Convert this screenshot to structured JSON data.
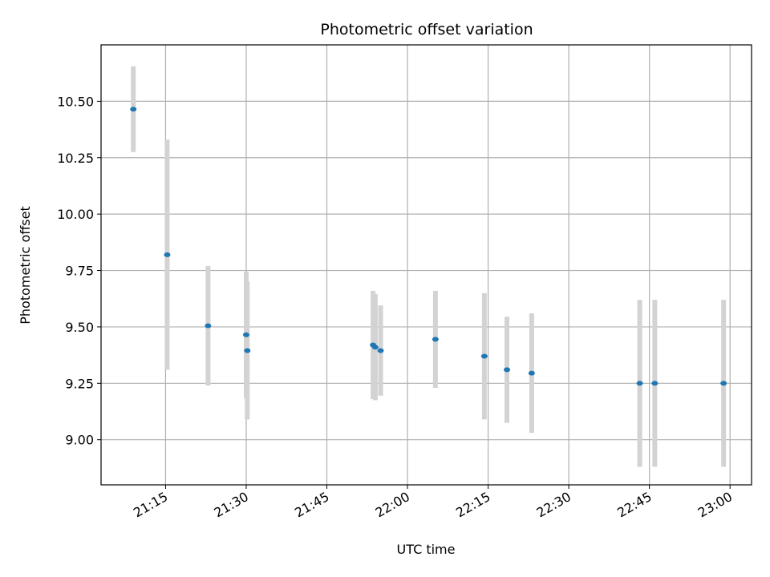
{
  "chart_data": {
    "type": "scatter",
    "title": "Photometric offset variation",
    "xlabel": "UTC time",
    "ylabel": "Photometric offset",
    "x_ticks": [
      "21:15",
      "21:30",
      "21:45",
      "22:00",
      "22:15",
      "22:30",
      "22:45",
      "23:00"
    ],
    "x_tick_minutes": [
      0,
      15,
      30,
      45,
      60,
      75,
      90,
      105
    ],
    "xlim_minutes": [
      -12,
      109
    ],
    "y_ticks": [
      "9.00",
      "9.25",
      "9.50",
      "9.75",
      "10.00",
      "10.25",
      "10.50"
    ],
    "y_tick_values": [
      9.0,
      9.25,
      9.5,
      9.75,
      10.0,
      10.25,
      10.5
    ],
    "ylim": [
      8.8,
      10.75
    ],
    "grid": true,
    "marker_color": "#1f77b4",
    "errorbar_color": "#d3d3d3",
    "points": [
      {
        "time": "21:09",
        "y": 10.465,
        "err": 0.19
      },
      {
        "time": "21:15.3",
        "y": 9.82,
        "err": 0.51
      },
      {
        "time": "21:22.9",
        "y": 9.505,
        "err": 0.265
      },
      {
        "time": "21:30",
        "y": 9.465,
        "err": 0.28
      },
      {
        "time": "21:30.2",
        "y": 9.395,
        "err": 0.305
      },
      {
        "time": "21:53.6",
        "y": 9.42,
        "err": 0.24
      },
      {
        "time": "21:54",
        "y": 9.41,
        "err": 0.235
      },
      {
        "time": "21:55",
        "y": 9.395,
        "err": 0.2
      },
      {
        "time": "22:05.2",
        "y": 9.445,
        "err": 0.215
      },
      {
        "time": "22:14.3",
        "y": 9.37,
        "err": 0.28
      },
      {
        "time": "22:18.5",
        "y": 9.31,
        "err": 0.235
      },
      {
        "time": "22:23.1",
        "y": 9.295,
        "err": 0.265
      },
      {
        "time": "22:43.2",
        "y": 9.25,
        "err": 0.37
      },
      {
        "time": "22:46",
        "y": 9.25,
        "err": 0.37
      },
      {
        "time": "22:58.8",
        "y": 9.25,
        "err": 0.37
      }
    ]
  }
}
